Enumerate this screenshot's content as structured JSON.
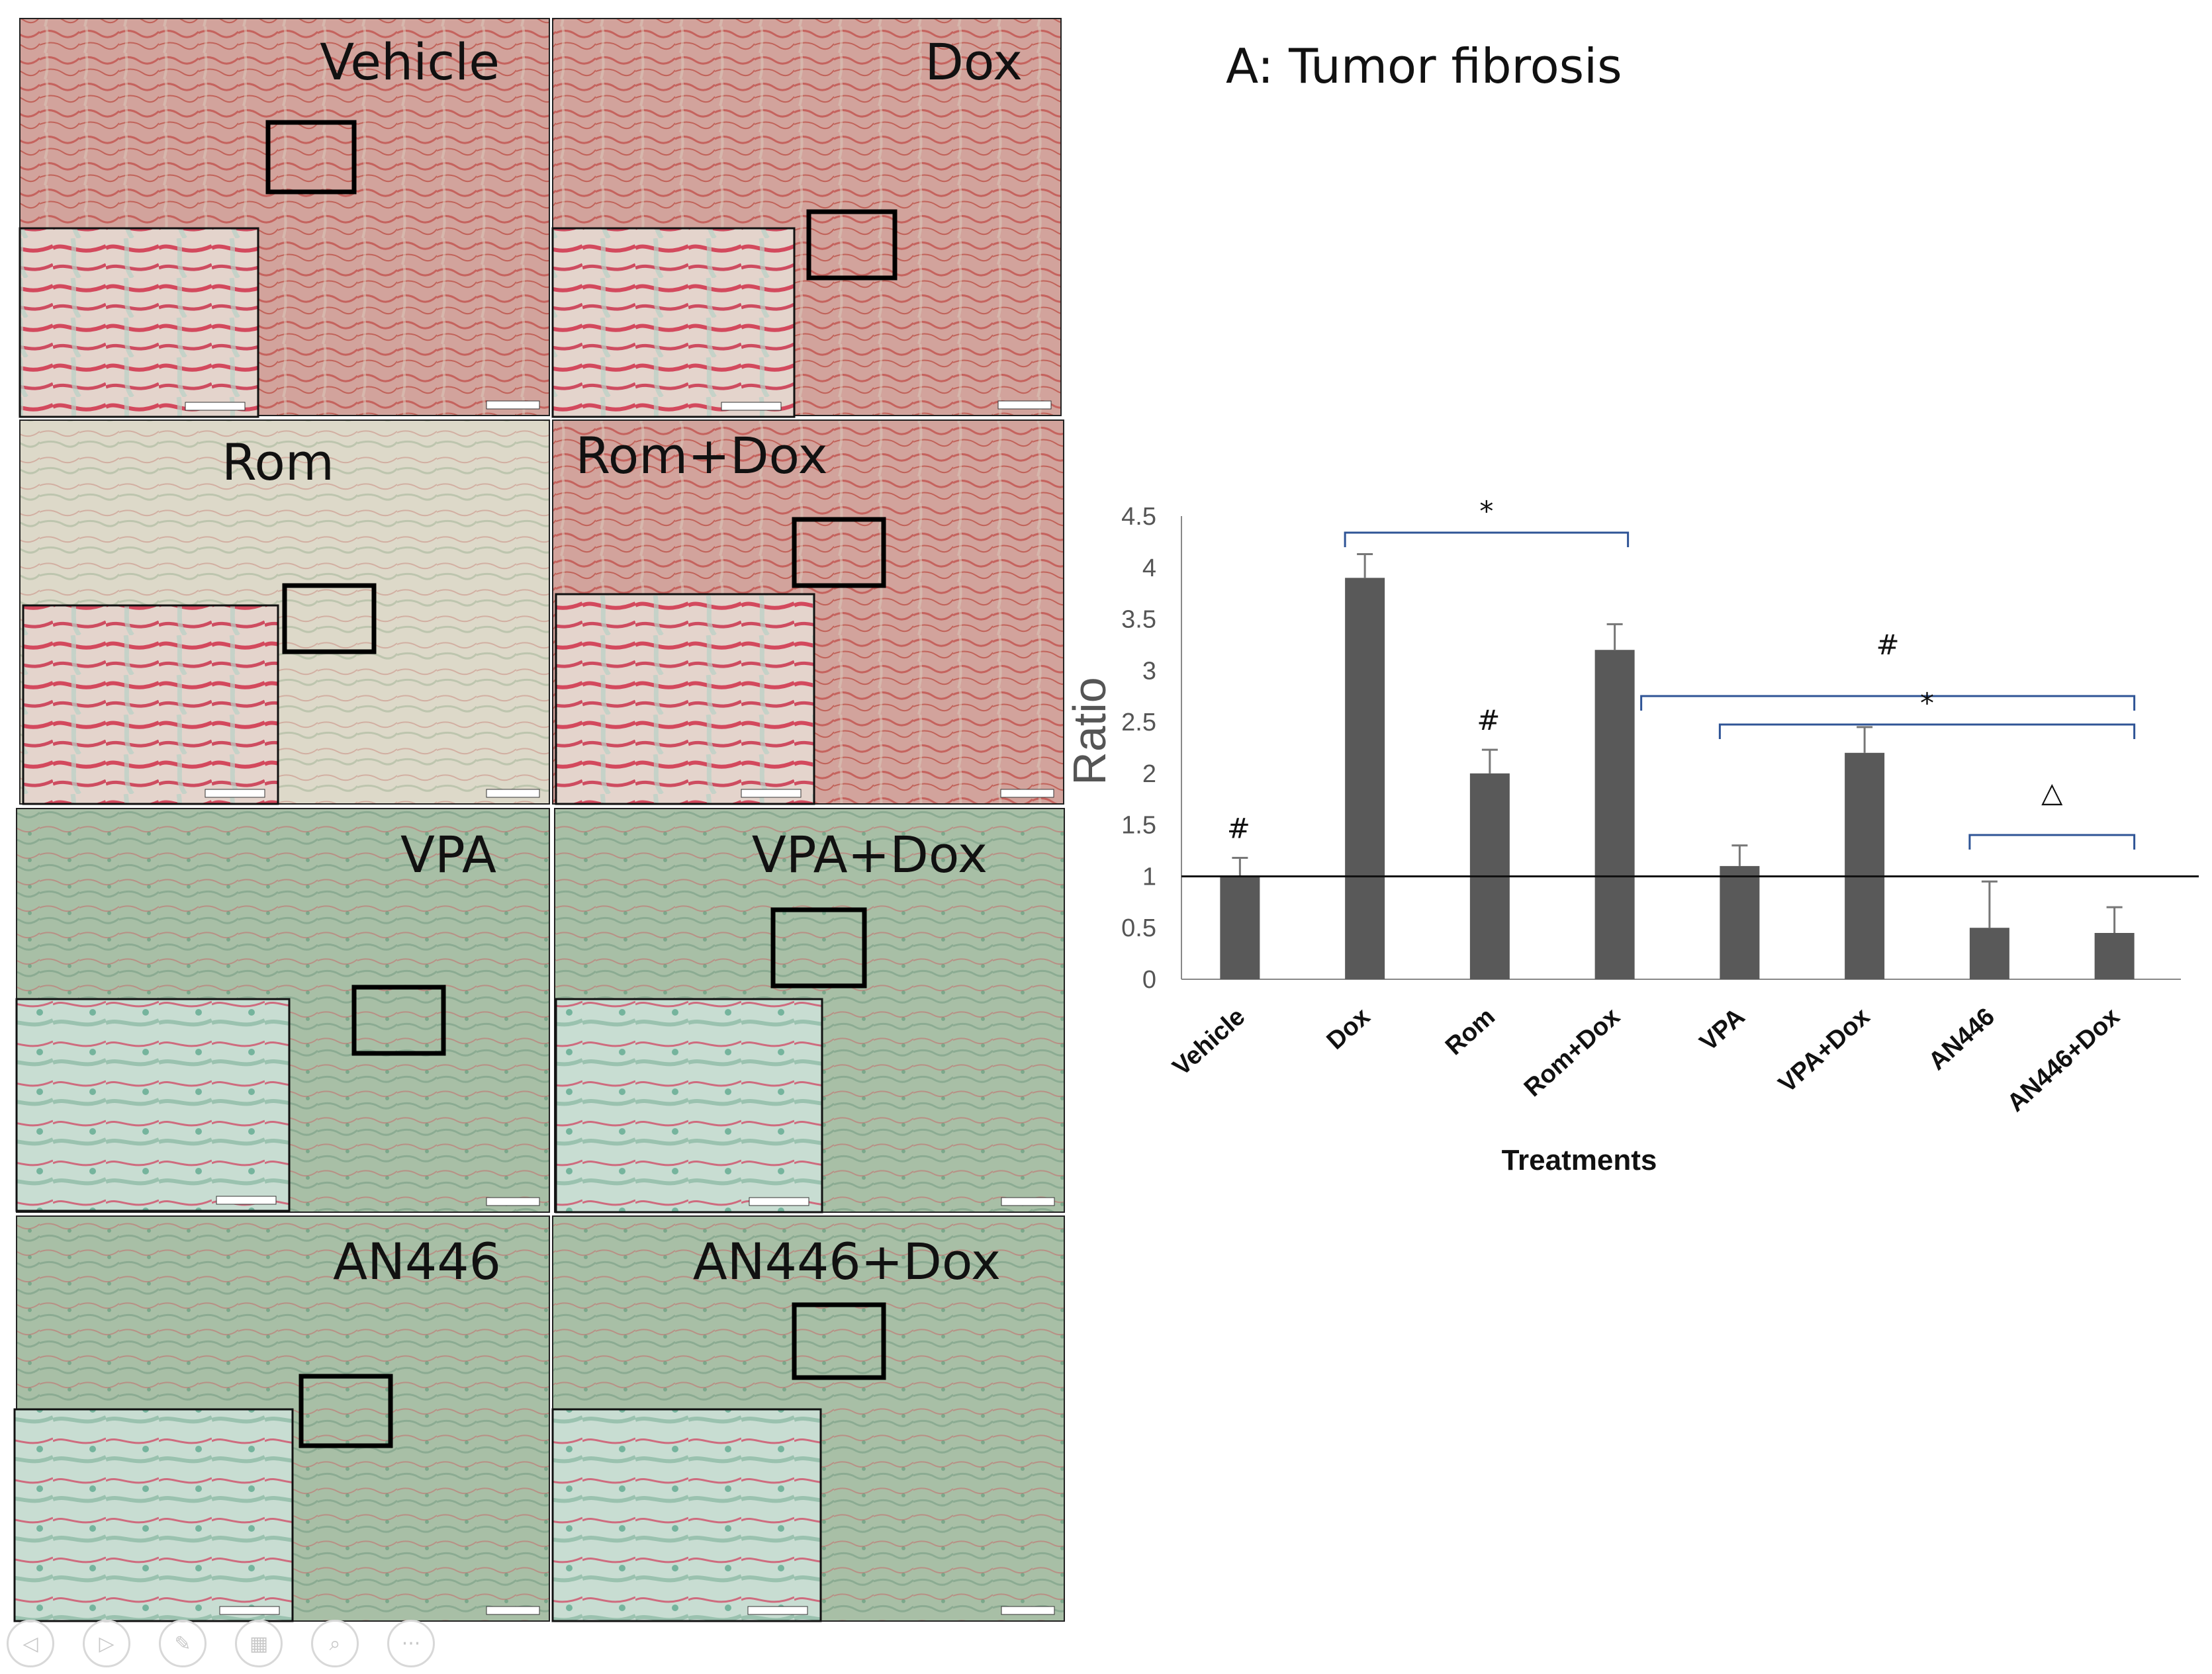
{
  "title": "A: Tumor fibrosis",
  "panels": [
    {
      "label": "Vehicle",
      "tissue": "red"
    },
    {
      "label": "Dox",
      "tissue": "red"
    },
    {
      "label": "Rom",
      "tissue": "pale"
    },
    {
      "label": "Rom+Dox",
      "tissue": "red"
    },
    {
      "label": "VPA",
      "tissue": "green"
    },
    {
      "label": "VPA+Dox",
      "tissue": "green"
    },
    {
      "label": "AN446",
      "tissue": "green"
    },
    {
      "label": "AN446+Dox",
      "tissue": "green"
    }
  ],
  "colors": {
    "bar": "#595959",
    "bracket": "#2f5496",
    "red_tissue": "#c98a84",
    "green_tissue": "#a9c2ad",
    "pale_tissue": "#d9d8cb"
  },
  "chart_data": {
    "type": "bar",
    "xlabel": "Treatments",
    "ylabel": "Ratio",
    "ylim": [
      0,
      4.5
    ],
    "yticks": [
      "0",
      "0.5",
      "1",
      "1.5",
      "2",
      "2.5",
      "3",
      "3.5",
      "4",
      "4.5"
    ],
    "categories": [
      "Vehicle",
      "Dox",
      "Rom",
      "Rom+Dox",
      "VPA",
      "VPA+Dox",
      "AN446",
      "AN446+Dox"
    ],
    "values": [
      1.0,
      3.9,
      2.0,
      3.2,
      1.1,
      2.2,
      0.5,
      0.45
    ],
    "errors": [
      0.18,
      0.23,
      0.23,
      0.25,
      0.2,
      0.25,
      0.45,
      0.25
    ],
    "reference_line": 1,
    "markers": [
      {
        "category": "Vehicle",
        "text": "#"
      },
      {
        "category": "Rom",
        "text": "#"
      }
    ],
    "brackets": [
      {
        "from": "Dox",
        "to": "Rom+Dox",
        "text": "*"
      },
      {
        "from": "Rom+Dox",
        "to": "AN446+Dox",
        "text": "#"
      },
      {
        "from": "VPA",
        "to": "AN446+Dox",
        "text": "*"
      },
      {
        "from": "AN446",
        "to": "AN446+Dox",
        "text": "△"
      }
    ]
  },
  "nav": {
    "prev": "◁",
    "next": "▷",
    "pen": "✎",
    "slides": "▦",
    "zoom": "⌕",
    "more": "···"
  }
}
